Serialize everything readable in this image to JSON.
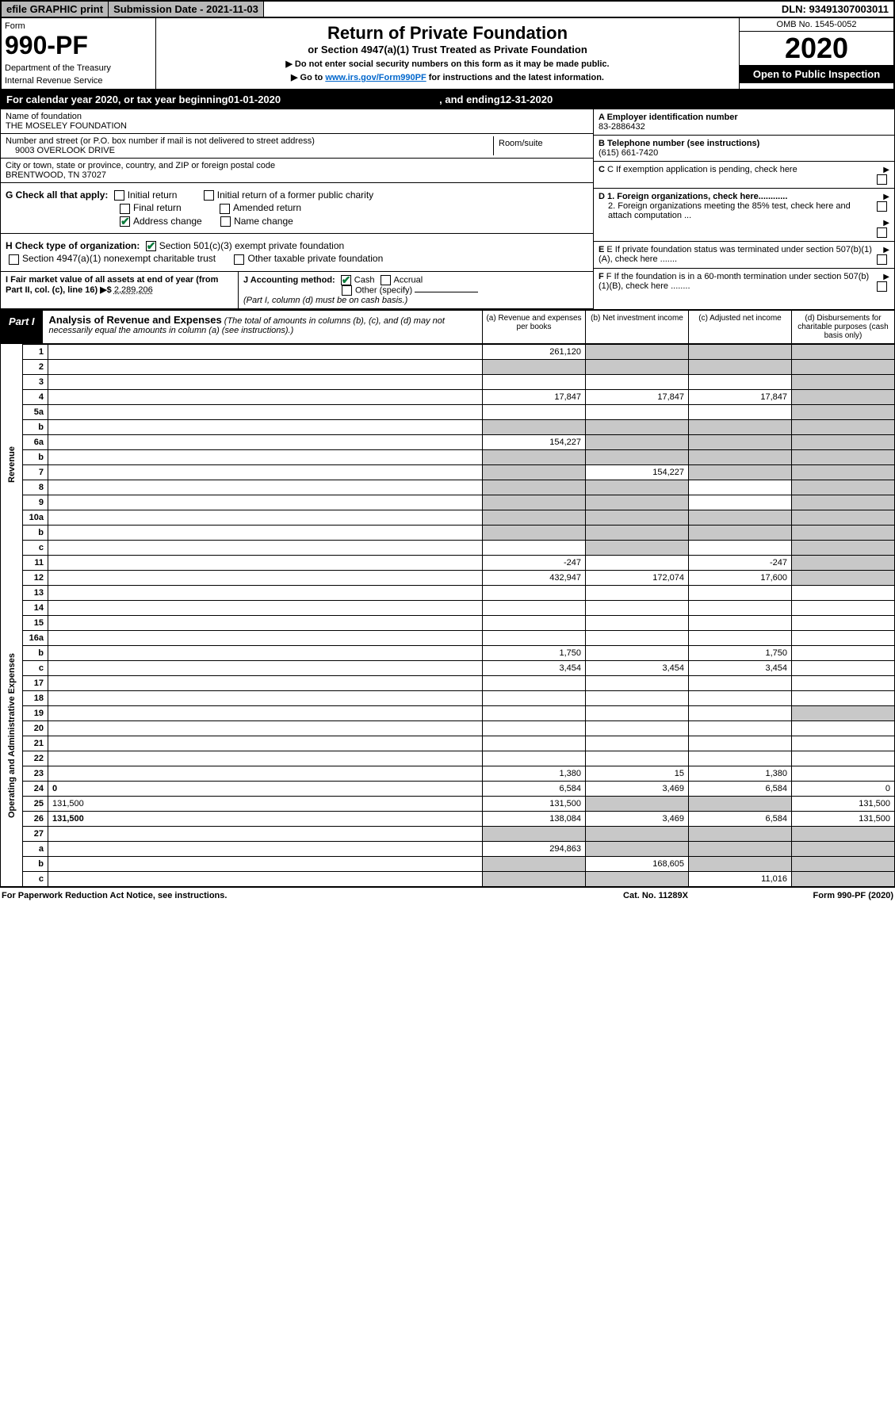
{
  "topbar": {
    "efile": "efile GRAPHIC print",
    "submission_label": "Submission Date - 2021-11-03",
    "dln": "DLN: 93491307003011"
  },
  "header": {
    "form_label": "Form",
    "form_number": "990-PF",
    "dept": "Department of the Treasury",
    "irs": "Internal Revenue Service",
    "title": "Return of Private Foundation",
    "subtitle": "or Section 4947(a)(1) Trust Treated as Private Foundation",
    "note1": "▶ Do not enter social security numbers on this form as it may be made public.",
    "note2_pre": "▶ Go to ",
    "note2_link": "www.irs.gov/Form990PF",
    "note2_post": " for instructions and the latest information.",
    "omb": "OMB No. 1545-0052",
    "year": "2020",
    "open": "Open to Public Inspection"
  },
  "cal": {
    "pre": "For calendar year 2020, or tax year beginning ",
    "begin": "01-01-2020",
    "mid": " , and ending ",
    "end": "12-31-2020"
  },
  "info": {
    "name_label": "Name of foundation",
    "name": "THE MOSELEY FOUNDATION",
    "addr_label": "Number and street (or P.O. box number if mail is not delivered to street address)",
    "addr": "9003 OVERLOOK DRIVE",
    "room_label": "Room/suite",
    "city_label": "City or town, state or province, country, and ZIP or foreign postal code",
    "city": "BRENTWOOD, TN  37027",
    "ein_label": "A Employer identification number",
    "ein": "83-2886432",
    "tel_label": "B Telephone number (see instructions)",
    "tel": "(615) 661-7420",
    "c_label": "C If exemption application is pending, check here",
    "d1": "D 1. Foreign organizations, check here............",
    "d2": "2. Foreign organizations meeting the 85% test, check here and attach computation ...",
    "e_label": "E If private foundation status was terminated under section 507(b)(1)(A), check here .......",
    "f_label": "F If the foundation is in a 60-month termination under section 507(b)(1)(B), check here ........"
  },
  "checks": {
    "g_label": "G Check all that apply:",
    "initial": "Initial return",
    "initial_former": "Initial return of a former public charity",
    "final": "Final return",
    "amended": "Amended return",
    "addr_change": "Address change",
    "name_change": "Name change",
    "h_label": "H Check type of organization:",
    "h_501c3": "Section 501(c)(3) exempt private foundation",
    "h_4947": "Section 4947(a)(1) nonexempt charitable trust",
    "h_other": "Other taxable private foundation",
    "i_label": "I Fair market value of all assets at end of year (from Part II, col. (c), line 16) ▶$ ",
    "i_value": "2,289,206",
    "j_label": "J Accounting method:",
    "j_cash": "Cash",
    "j_accrual": "Accrual",
    "j_other": "Other (specify)",
    "j_note": "(Part I, column (d) must be on cash basis.)"
  },
  "part1": {
    "label": "Part I",
    "title": "Analysis of Revenue and Expenses",
    "title_note": " (The total of amounts in columns (b), (c), and (d) may not necessarily equal the amounts in column (a) (see instructions).)",
    "col_a": "(a) Revenue and expenses per books",
    "col_b": "(b) Net investment income",
    "col_c": "(c) Adjusted net income",
    "col_d": "(d) Disbursements for charitable purposes (cash basis only)"
  },
  "sides": {
    "revenue": "Revenue",
    "expenses": "Operating and Administrative Expenses"
  },
  "rows": [
    {
      "n": "1",
      "d": "",
      "a": "261,120",
      "b": "",
      "c": "",
      "shade_b": true,
      "shade_c": true,
      "shade_d": true
    },
    {
      "n": "2",
      "d": "",
      "a": "",
      "b": "",
      "c": "",
      "shade_a": true,
      "shade_b": true,
      "shade_c": true,
      "shade_d": true
    },
    {
      "n": "3",
      "d": "",
      "a": "",
      "b": "",
      "c": "",
      "shade_d": true
    },
    {
      "n": "4",
      "d": "",
      "a": "17,847",
      "b": "17,847",
      "c": "17,847",
      "shade_d": true
    },
    {
      "n": "5a",
      "d": "",
      "a": "",
      "b": "",
      "c": "",
      "shade_d": true
    },
    {
      "n": "b",
      "d": "",
      "a": "",
      "b": "",
      "c": "",
      "shade_a": true,
      "shade_b": true,
      "shade_c": true,
      "shade_d": true
    },
    {
      "n": "6a",
      "d": "",
      "a": "154,227",
      "b": "",
      "c": "",
      "shade_b": true,
      "shade_c": true,
      "shade_d": true
    },
    {
      "n": "b",
      "d": "",
      "a": "",
      "b": "",
      "c": "",
      "shade_a": true,
      "shade_b": true,
      "shade_c": true,
      "shade_d": true
    },
    {
      "n": "7",
      "d": "",
      "a": "",
      "b": "154,227",
      "c": "",
      "shade_a": true,
      "shade_c": true,
      "shade_d": true
    },
    {
      "n": "8",
      "d": "",
      "a": "",
      "b": "",
      "c": "",
      "shade_a": true,
      "shade_b": true,
      "shade_d": true
    },
    {
      "n": "9",
      "d": "",
      "a": "",
      "b": "",
      "c": "",
      "shade_a": true,
      "shade_b": true,
      "shade_d": true
    },
    {
      "n": "10a",
      "d": "",
      "a": "",
      "b": "",
      "c": "",
      "shade_a": true,
      "shade_b": true,
      "shade_c": true,
      "shade_d": true
    },
    {
      "n": "b",
      "d": "",
      "a": "",
      "b": "",
      "c": "",
      "shade_a": true,
      "shade_b": true,
      "shade_c": true,
      "shade_d": true
    },
    {
      "n": "c",
      "d": "",
      "a": "",
      "b": "",
      "c": "",
      "shade_b": true,
      "shade_d": true
    },
    {
      "n": "11",
      "d": "",
      "a": "-247",
      "b": "",
      "c": "-247",
      "shade_d": true
    },
    {
      "n": "12",
      "d": "",
      "a": "432,947",
      "b": "172,074",
      "c": "17,600",
      "bold": true,
      "shade_d": true
    },
    {
      "n": "13",
      "d": "",
      "a": "",
      "b": "",
      "c": ""
    },
    {
      "n": "14",
      "d": "",
      "a": "",
      "b": "",
      "c": ""
    },
    {
      "n": "15",
      "d": "",
      "a": "",
      "b": "",
      "c": ""
    },
    {
      "n": "16a",
      "d": "",
      "a": "",
      "b": "",
      "c": ""
    },
    {
      "n": "b",
      "d": "",
      "a": "1,750",
      "b": "",
      "c": "1,750"
    },
    {
      "n": "c",
      "d": "",
      "a": "3,454",
      "b": "3,454",
      "c": "3,454"
    },
    {
      "n": "17",
      "d": "",
      "a": "",
      "b": "",
      "c": ""
    },
    {
      "n": "18",
      "d": "",
      "a": "",
      "b": "",
      "c": ""
    },
    {
      "n": "19",
      "d": "",
      "a": "",
      "b": "",
      "c": "",
      "shade_d": true
    },
    {
      "n": "20",
      "d": "",
      "a": "",
      "b": "",
      "c": ""
    },
    {
      "n": "21",
      "d": "",
      "a": "",
      "b": "",
      "c": ""
    },
    {
      "n": "22",
      "d": "",
      "a": "",
      "b": "",
      "c": ""
    },
    {
      "n": "23",
      "d": "",
      "a": "1,380",
      "b": "15",
      "c": "1,380"
    },
    {
      "n": "24",
      "d": "0",
      "a": "6,584",
      "b": "3,469",
      "c": "6,584",
      "bold": true
    },
    {
      "n": "25",
      "d": "131,500",
      "a": "131,500",
      "b": "",
      "c": "",
      "shade_b": true,
      "shade_c": true
    },
    {
      "n": "26",
      "d": "131,500",
      "a": "138,084",
      "b": "3,469",
      "c": "6,584",
      "bold": true
    },
    {
      "n": "27",
      "d": "",
      "a": "",
      "b": "",
      "c": "",
      "shade_a": true,
      "shade_b": true,
      "shade_c": true,
      "shade_d": true
    },
    {
      "n": "a",
      "d": "",
      "a": "294,863",
      "b": "",
      "c": "",
      "bold": true,
      "shade_b": true,
      "shade_c": true,
      "shade_d": true
    },
    {
      "n": "b",
      "d": "",
      "a": "",
      "b": "168,605",
      "c": "",
      "bold": true,
      "shade_a": true,
      "shade_c": true,
      "shade_d": true
    },
    {
      "n": "c",
      "d": "",
      "a": "",
      "b": "",
      "c": "11,016",
      "bold": true,
      "shade_a": true,
      "shade_b": true,
      "shade_d": true
    }
  ],
  "footer": {
    "left": "For Paperwork Reduction Act Notice, see instructions.",
    "mid": "Cat. No. 11289X",
    "right": "Form 990-PF (2020)"
  },
  "colors": {
    "shaded": "#c8c8c8",
    "link": "#0066cc",
    "check": "#0a7a3a"
  }
}
